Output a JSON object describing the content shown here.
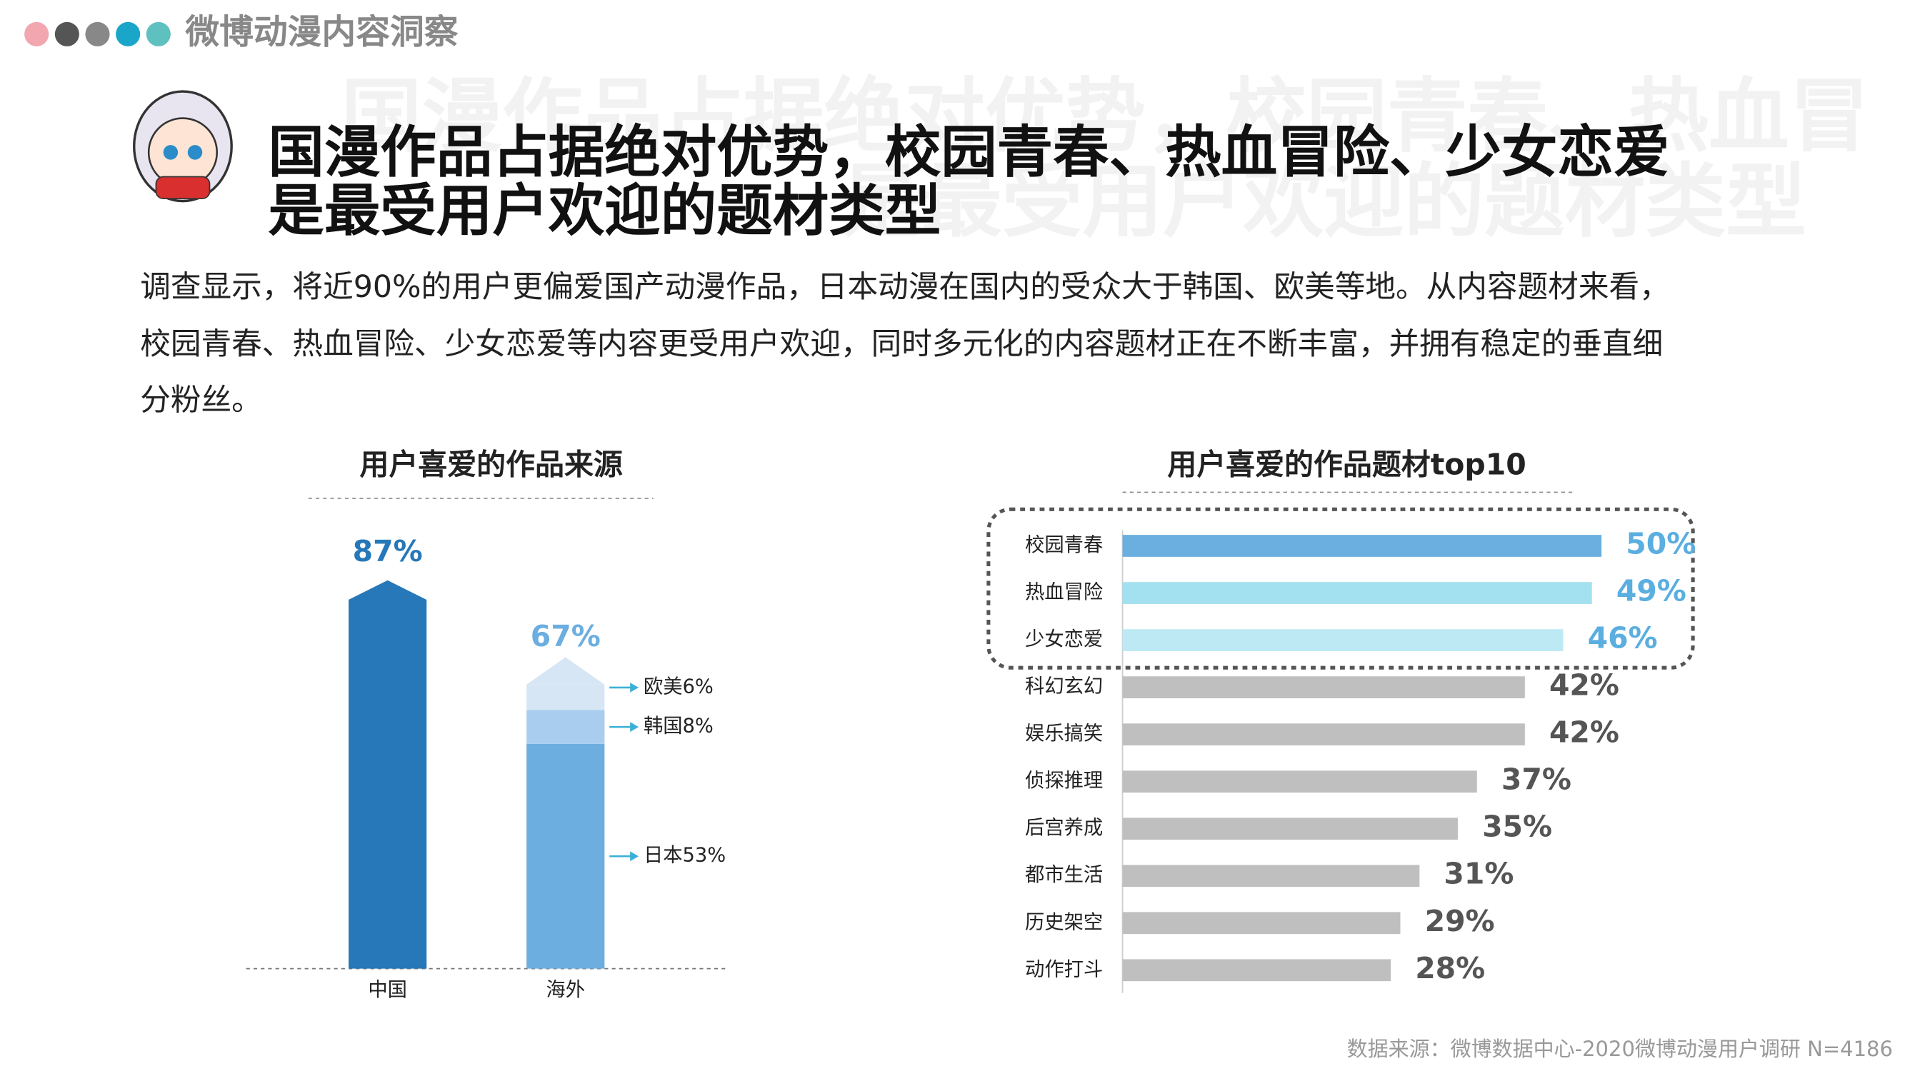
{
  "header": {
    "section": "微博动漫内容洞察",
    "title": [
      "国漫作品占据绝对优势，校园青春、热血冒险、少女恋爱",
      "是最受用户欢迎的题材类型"
    ],
    "watermark": [
      "国漫作品占据绝对优势，校园青春、热血冒",
      "是最受用户欢迎的题材类型"
    ]
  },
  "body": [
    "调查显示，将近90%的用户更偏爱国产动漫作品，日本动漫在国内的受众大于韩国、欧美等地。从内容题材来看，",
    "校园青春、热血冒险、少女恋爱等内容更受用户欢迎，同时多元化的内容题材正在不断丰富，并拥有稳定的垂直细",
    "分粉丝。"
  ],
  "source": "数据来源：微博数据中心-2020微博动漫用户调研  N=4186",
  "chart_data": [
    {
      "type": "bar",
      "title": "用户喜爱的作品来源",
      "categories": [
        "中国",
        "海外"
      ],
      "values": [
        87,
        67
      ],
      "value_labels": [
        "87%",
        "67%"
      ],
      "colors": [
        "#2678b8",
        "#6caee0"
      ],
      "label_colors": [
        "#2678b8",
        "#6caee0"
      ],
      "segments": [
        {
          "label": "日本53%",
          "value": 53,
          "color": "#6caee0"
        },
        {
          "label": "韩国8%",
          "value": 8,
          "color": "#a8cdee"
        },
        {
          "label": "欧美6%",
          "value": 6,
          "color": "#d6e6f5"
        }
      ]
    },
    {
      "type": "hbar",
      "title": "用户喜爱的作品题材top10",
      "categories": [
        "校园青春",
        "热血冒险",
        "少女恋爱",
        "科幻玄幻",
        "娱乐搞笑",
        "侦探推理",
        "后宫养成",
        "都市生活",
        "历史架空",
        "动作打斗"
      ],
      "values": [
        50,
        49,
        46,
        42,
        42,
        37,
        35,
        31,
        29,
        28
      ],
      "value_labels": [
        "50%",
        "49%",
        "46%",
        "42%",
        "42%",
        "37%",
        "35%",
        "31%",
        "29%",
        "28%"
      ],
      "colors": [
        "#6aafe0",
        "#a3e0f0",
        "#bde9f5",
        "#bfbfbf",
        "#bfbfbf",
        "#bfbfbf",
        "#bfbfbf",
        "#bfbfbf",
        "#bfbfbf",
        "#bfbfbf"
      ],
      "label_colors": [
        "#5aaee0",
        "#5aaee0",
        "#5aaee0",
        "#555555",
        "#555555",
        "#555555",
        "#555555",
        "#555555",
        "#555555",
        "#555555"
      ]
    }
  ]
}
